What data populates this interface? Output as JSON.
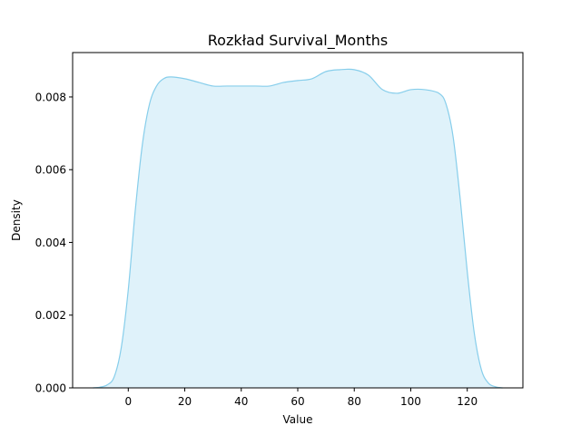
{
  "chart_data": {
    "type": "area",
    "title": "Rozkład Survival_Months",
    "xlabel": "Value",
    "ylabel": "Density",
    "xlim": [
      -19.7,
      139.7
    ],
    "ylim": [
      0,
      0.00922
    ],
    "xticks": [
      0,
      20,
      40,
      60,
      80,
      100,
      120
    ],
    "yticks": [
      0.0,
      0.002,
      0.004,
      0.006,
      0.008
    ],
    "ytick_labels": [
      "0.000",
      "0.002",
      "0.004",
      "0.006",
      "0.008"
    ],
    "grid": false,
    "legend": false,
    "colors": {
      "line": "#87ceeb",
      "fill": "#87ceeb",
      "fill_opacity": 0.27
    },
    "series": [
      {
        "x": [
          -12.5,
          -10,
          -7.5,
          -5,
          -2.5,
          0,
          2.5,
          5,
          7.5,
          10,
          12.5,
          15,
          20,
          25,
          30,
          35,
          40,
          45,
          50,
          55,
          60,
          65,
          70,
          75,
          80,
          85,
          90,
          95,
          100,
          105,
          110,
          112.5,
          115,
          117.5,
          120,
          122.5,
          125,
          127.5,
          130,
          132.5
        ],
        "y": [
          0.0,
          2e-05,
          8e-05,
          0.0003,
          0.0011,
          0.0027,
          0.0049,
          0.0067,
          0.0078,
          0.0083,
          0.0085,
          0.00855,
          0.0085,
          0.0084,
          0.0083,
          0.0083,
          0.0083,
          0.0083,
          0.0083,
          0.0084,
          0.00845,
          0.0085,
          0.0087,
          0.00875,
          0.00875,
          0.0086,
          0.0082,
          0.0081,
          0.0082,
          0.0082,
          0.0081,
          0.0078,
          0.0069,
          0.0052,
          0.0032,
          0.0015,
          0.0005,
          0.00013,
          3e-05,
          0.0
        ]
      }
    ]
  }
}
